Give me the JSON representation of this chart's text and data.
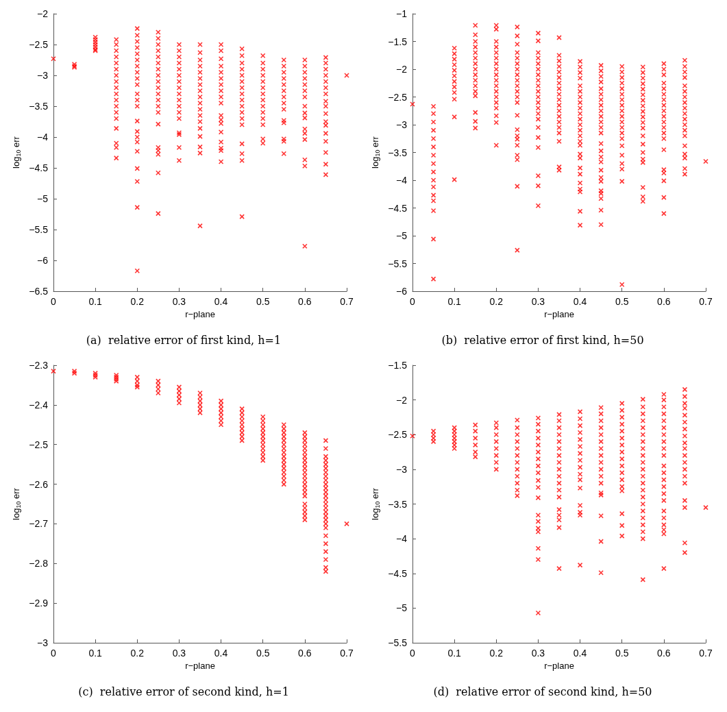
{
  "chart_data": [
    {
      "type": "scatter",
      "title": "(a)  relative error of first kind, h=1",
      "xlabel": "r−plane",
      "ylabel": "log$_{10}$ err",
      "xlim": [
        0,
        0.7
      ],
      "xticks": [
        0,
        0.1,
        0.2,
        0.3,
        0.4,
        0.5,
        0.6,
        0.7
      ],
      "ylim": [
        -6.5,
        -2
      ],
      "yticks": [
        -6.5,
        -6,
        -5.5,
        -5,
        -4.5,
        -4,
        -3.5,
        -3,
        -2.5,
        -2
      ],
      "grid": false,
      "marker": "cross",
      "series": [
        {
          "color": "#ff0000",
          "x": [
            0
          ],
          "values": [
            -2.73
          ]
        },
        {
          "color": "#ff0000",
          "x": [
            0.05,
            0.05,
            0.05
          ],
          "values": [
            -2.82,
            -2.85,
            -2.87
          ]
        },
        {
          "color": "#ff0000",
          "x": [
            0.1,
            0.1,
            0.1,
            0.1,
            0.1,
            0.1,
            0.1
          ],
          "values": [
            -2.38,
            -2.42,
            -2.46,
            -2.5,
            -2.54,
            -2.58,
            -2.6
          ]
        },
        {
          "color": "#ff0000",
          "x": [
            0.15,
            0.15,
            0.15,
            0.15,
            0.15,
            0.15,
            0.15,
            0.15,
            0.15,
            0.15,
            0.15,
            0.15,
            0.15,
            0.15,
            0.15,
            0.15,
            0.15,
            0.15
          ],
          "values": [
            -2.42,
            -2.5,
            -2.6,
            -2.7,
            -2.8,
            -2.9,
            -3.0,
            -3.1,
            -3.2,
            -3.3,
            -3.4,
            -3.5,
            -3.6,
            -3.7,
            -3.86,
            -4.1,
            -4.17,
            -4.34
          ]
        },
        {
          "color": "#ff0000",
          "x": [
            0.2,
            0.2,
            0.2,
            0.2,
            0.2,
            0.2,
            0.2,
            0.2,
            0.2,
            0.2,
            0.2,
            0.2,
            0.2,
            0.2,
            0.2,
            0.2,
            0.2,
            0.2,
            0.2,
            0.2,
            0.2,
            0.2
          ],
          "values": [
            -2.24,
            -2.35,
            -2.45,
            -2.55,
            -2.65,
            -2.75,
            -2.85,
            -2.95,
            -3.05,
            -3.15,
            -3.3,
            -3.4,
            -3.5,
            -3.74,
            -3.91,
            -4.0,
            -4.08,
            -4.23,
            -4.51,
            -4.72,
            -5.14,
            -6.17
          ]
        },
        {
          "color": "#ff0000",
          "x": [
            0.25,
            0.25,
            0.25,
            0.25,
            0.25,
            0.25,
            0.25,
            0.25,
            0.25,
            0.25,
            0.25,
            0.25,
            0.25,
            0.25,
            0.25,
            0.25,
            0.25,
            0.25,
            0.25,
            0.25
          ],
          "values": [
            -2.3,
            -2.4,
            -2.5,
            -2.6,
            -2.7,
            -2.8,
            -2.9,
            -3.0,
            -3.1,
            -3.2,
            -3.3,
            -3.4,
            -3.5,
            -3.6,
            -3.79,
            -4.17,
            -4.22,
            -4.28,
            -4.58,
            -5.24
          ]
        },
        {
          "color": "#ff0000",
          "x": [
            0.3,
            0.3,
            0.3,
            0.3,
            0.3,
            0.3,
            0.3,
            0.3,
            0.3,
            0.3,
            0.3,
            0.3,
            0.3,
            0.3,
            0.3,
            0.3,
            0.3
          ],
          "values": [
            -2.5,
            -2.6,
            -2.7,
            -2.8,
            -2.9,
            -3.0,
            -3.1,
            -3.2,
            -3.3,
            -3.4,
            -3.5,
            -3.6,
            -3.7,
            -3.93,
            -3.96,
            -4.17,
            -4.38
          ]
        },
        {
          "color": "#ff0000",
          "x": [
            0.35,
            0.35,
            0.35,
            0.35,
            0.35,
            0.35,
            0.35,
            0.35,
            0.35,
            0.35,
            0.35,
            0.35,
            0.35,
            0.35,
            0.35,
            0.35,
            0.35,
            0.35
          ],
          "values": [
            -2.5,
            -2.63,
            -2.75,
            -2.85,
            -2.95,
            -3.05,
            -3.15,
            -3.25,
            -3.35,
            -3.45,
            -3.55,
            -3.65,
            -3.75,
            -3.86,
            -3.99,
            -4.16,
            -4.26,
            -5.44
          ]
        },
        {
          "color": "#ff0000",
          "x": [
            0.4,
            0.4,
            0.4,
            0.4,
            0.4,
            0.4,
            0.4,
            0.4,
            0.4,
            0.4,
            0.4,
            0.4,
            0.4,
            0.4,
            0.4,
            0.4,
            0.4,
            0.4
          ],
          "values": [
            -2.5,
            -2.6,
            -2.73,
            -2.85,
            -2.95,
            -3.05,
            -3.15,
            -3.25,
            -3.35,
            -3.45,
            -3.65,
            -3.72,
            -3.78,
            -3.92,
            -4.08,
            -4.18,
            -4.22,
            -4.4
          ]
        },
        {
          "color": "#ff0000",
          "x": [
            0.45,
            0.45,
            0.45,
            0.45,
            0.45,
            0.45,
            0.45,
            0.45,
            0.45,
            0.45,
            0.45,
            0.45,
            0.45,
            0.45,
            0.45,
            0.45,
            0.45
          ],
          "values": [
            -2.57,
            -2.68,
            -2.8,
            -2.9,
            -3.0,
            -3.1,
            -3.2,
            -3.3,
            -3.4,
            -3.5,
            -3.6,
            -3.7,
            -3.8,
            -4.11,
            -4.27,
            -4.38,
            -5.29
          ]
        },
        {
          "color": "#ff0000",
          "x": [
            0.5,
            0.5,
            0.5,
            0.5,
            0.5,
            0.5,
            0.5,
            0.5,
            0.5,
            0.5,
            0.5,
            0.5,
            0.5,
            0.5
          ],
          "values": [
            -2.68,
            -2.8,
            -2.9,
            -3.0,
            -3.1,
            -3.2,
            -3.3,
            -3.4,
            -3.5,
            -3.6,
            -3.7,
            -3.8,
            -4.03,
            -4.1
          ]
        },
        {
          "color": "#ff0000",
          "x": [
            0.55,
            0.55,
            0.55,
            0.55,
            0.55,
            0.55,
            0.55,
            0.55,
            0.55,
            0.55,
            0.55,
            0.55,
            0.55,
            0.55
          ],
          "values": [
            -2.75,
            -2.85,
            -2.95,
            -3.05,
            -3.15,
            -3.25,
            -3.35,
            -3.45,
            -3.55,
            -3.73,
            -3.77,
            -4.03,
            -4.07,
            -4.27
          ]
        },
        {
          "color": "#ff0000",
          "x": [
            0.6,
            0.6,
            0.6,
            0.6,
            0.6,
            0.6,
            0.6,
            0.6,
            0.6,
            0.6,
            0.6,
            0.6,
            0.6,
            0.6,
            0.6,
            0.6
          ],
          "values": [
            -2.75,
            -2.85,
            -2.95,
            -3.05,
            -3.15,
            -3.25,
            -3.35,
            -3.5,
            -3.61,
            -3.69,
            -3.87,
            -3.94,
            -4.04,
            -4.37,
            -4.47,
            -5.77
          ]
        },
        {
          "color": "#ff0000",
          "x": [
            0.65,
            0.65,
            0.65,
            0.65,
            0.65,
            0.65,
            0.65,
            0.65,
            0.65,
            0.65,
            0.65,
            0.65,
            0.65,
            0.65,
            0.65,
            0.65,
            0.65
          ],
          "values": [
            -2.71,
            -2.8,
            -2.9,
            -3.0,
            -3.1,
            -3.2,
            -3.3,
            -3.42,
            -3.5,
            -3.62,
            -3.75,
            -3.81,
            -3.94,
            -4.07,
            -4.25,
            -4.44,
            -4.61
          ]
        },
        {
          "color": "#ff0000",
          "x": [
            0.7
          ],
          "values": [
            -3.0
          ]
        }
      ]
    },
    {
      "type": "scatter",
      "title": "(b)  relative error of first kind, h=50",
      "xlabel": "r−plane",
      "ylabel": "log$_{10}$ err",
      "xlim": [
        0,
        0.7
      ],
      "xticks": [
        0,
        0.1,
        0.2,
        0.3,
        0.4,
        0.5,
        0.6,
        0.7
      ],
      "ylim": [
        -6,
        -1
      ],
      "yticks": [
        -6,
        -5.5,
        -5,
        -4.5,
        -4,
        -3.5,
        -3,
        -2.5,
        -2,
        -1.5,
        -1
      ],
      "grid": false,
      "marker": "cross",
      "series": [
        {
          "color": "#ff0000",
          "x": [
            0
          ],
          "values": [
            -2.63
          ]
        },
        {
          "color": "#ff0000",
          "x": [
            0.05,
            0.05,
            0.05,
            0.05,
            0.05,
            0.05,
            0.05,
            0.05,
            0.05,
            0.05,
            0.05,
            0.05,
            0.05,
            0.05,
            0.05,
            0.05
          ],
          "values": [
            -2.67,
            -2.8,
            -2.95,
            -3.1,
            -3.25,
            -3.4,
            -3.55,
            -3.7,
            -3.85,
            -4.0,
            -4.12,
            -4.27,
            -4.37,
            -4.55,
            -5.06,
            -5.78
          ]
        },
        {
          "color": "#ff0000",
          "x": [
            0.1,
            0.1,
            0.1,
            0.1,
            0.1,
            0.1,
            0.1,
            0.1,
            0.1,
            0.1,
            0.1,
            0.1
          ],
          "values": [
            -1.62,
            -1.72,
            -1.82,
            -1.92,
            -2.02,
            -2.12,
            -2.22,
            -2.32,
            -2.42,
            -2.54,
            -2.86,
            -3.99
          ]
        },
        {
          "color": "#ff0000",
          "x": [
            0.15,
            0.15,
            0.15,
            0.15,
            0.15,
            0.15,
            0.15,
            0.15,
            0.15,
            0.15,
            0.15,
            0.15,
            0.15,
            0.15,
            0.15,
            0.15
          ],
          "values": [
            -1.21,
            -1.38,
            -1.5,
            -1.6,
            -1.7,
            -1.8,
            -1.9,
            -2.0,
            -2.1,
            -2.2,
            -2.3,
            -2.4,
            -2.48,
            -2.78,
            -2.94,
            -3.06
          ]
        },
        {
          "color": "#ff0000",
          "x": [
            0.2,
            0.2,
            0.2,
            0.2,
            0.2,
            0.2,
            0.2,
            0.2,
            0.2,
            0.2,
            0.2,
            0.2,
            0.2,
            0.2,
            0.2,
            0.2,
            0.2,
            0.2
          ],
          "values": [
            -1.21,
            -1.28,
            -1.5,
            -1.6,
            -1.7,
            -1.8,
            -1.9,
            -2.0,
            -2.1,
            -2.2,
            -2.3,
            -2.4,
            -2.5,
            -2.6,
            -2.7,
            -2.84,
            -2.96,
            -3.37
          ]
        },
        {
          "color": "#ff0000",
          "x": [
            0.25,
            0.25,
            0.25,
            0.25,
            0.25,
            0.25,
            0.25,
            0.25,
            0.25,
            0.25,
            0.25,
            0.25,
            0.25,
            0.25,
            0.25,
            0.25,
            0.25,
            0.25,
            0.25,
            0.25,
            0.25,
            0.25
          ],
          "values": [
            -1.24,
            -1.4,
            -1.55,
            -1.7,
            -1.8,
            -1.9,
            -2.0,
            -2.1,
            -2.2,
            -2.3,
            -2.4,
            -2.5,
            -2.6,
            -2.83,
            -3.09,
            -3.2,
            -3.26,
            -3.37,
            -3.55,
            -3.63,
            -4.11,
            -5.26
          ]
        },
        {
          "color": "#ff0000",
          "x": [
            0.3,
            0.3,
            0.3,
            0.3,
            0.3,
            0.3,
            0.3,
            0.3,
            0.3,
            0.3,
            0.3,
            0.3,
            0.3,
            0.3,
            0.3,
            0.3,
            0.3,
            0.3,
            0.3,
            0.3,
            0.3
          ],
          "values": [
            -1.35,
            -1.49,
            -1.7,
            -1.8,
            -1.9,
            -2.0,
            -2.1,
            -2.2,
            -2.3,
            -2.4,
            -2.5,
            -2.6,
            -2.7,
            -2.8,
            -2.9,
            -3.05,
            -3.23,
            -3.41,
            -3.92,
            -4.1,
            -4.46
          ]
        },
        {
          "color": "#ff0000",
          "x": [
            0.35,
            0.35,
            0.35,
            0.35,
            0.35,
            0.35,
            0.35,
            0.35,
            0.35,
            0.35,
            0.35,
            0.35,
            0.35,
            0.35,
            0.35,
            0.35,
            0.35,
            0.35,
            0.35
          ],
          "values": [
            -1.43,
            -1.75,
            -1.85,
            -1.95,
            -2.05,
            -2.15,
            -2.25,
            -2.35,
            -2.45,
            -2.55,
            -2.65,
            -2.75,
            -2.85,
            -2.95,
            -3.05,
            -3.15,
            -3.3,
            -3.76,
            -3.82
          ]
        },
        {
          "color": "#ff0000",
          "x": [
            0.4,
            0.4,
            0.4,
            0.4,
            0.4,
            0.4,
            0.4,
            0.4,
            0.4,
            0.4,
            0.4,
            0.4,
            0.4,
            0.4,
            0.4,
            0.4,
            0.4,
            0.4,
            0.4,
            0.4,
            0.4,
            0.4,
            0.4,
            0.4,
            0.4
          ],
          "values": [
            -1.86,
            -1.96,
            -2.06,
            -2.16,
            -2.3,
            -2.4,
            -2.5,
            -2.6,
            -2.7,
            -2.8,
            -2.9,
            -3.0,
            -3.1,
            -3.2,
            -3.3,
            -3.37,
            -3.53,
            -3.6,
            -3.78,
            -3.89,
            -4.05,
            -4.16,
            -4.21,
            -4.56,
            -4.81
          ]
        },
        {
          "color": "#ff0000",
          "x": [
            0.45,
            0.45,
            0.45,
            0.45,
            0.45,
            0.45,
            0.45,
            0.45,
            0.45,
            0.45,
            0.45,
            0.45,
            0.45,
            0.45,
            0.45,
            0.45,
            0.45,
            0.45,
            0.45,
            0.45,
            0.45,
            0.45,
            0.45,
            0.45,
            0.45
          ],
          "values": [
            -1.93,
            -2.03,
            -2.13,
            -2.23,
            -2.35,
            -2.45,
            -2.55,
            -2.65,
            -2.75,
            -2.85,
            -2.95,
            -3.05,
            -3.15,
            -3.34,
            -3.47,
            -3.58,
            -3.67,
            -3.82,
            -3.95,
            -4.02,
            -4.19,
            -4.24,
            -4.33,
            -4.54,
            -4.8
          ]
        },
        {
          "color": "#ff0000",
          "x": [
            0.5,
            0.5,
            0.5,
            0.5,
            0.5,
            0.5,
            0.5,
            0.5,
            0.5,
            0.5,
            0.5,
            0.5,
            0.5,
            0.5,
            0.5,
            0.5,
            0.5,
            0.5,
            0.5,
            0.5
          ],
          "values": [
            -1.95,
            -2.05,
            -2.15,
            -2.25,
            -2.35,
            -2.45,
            -2.55,
            -2.65,
            -2.75,
            -2.85,
            -2.95,
            -3.05,
            -3.15,
            -3.25,
            -3.38,
            -3.55,
            -3.7,
            -3.8,
            -4.02,
            -5.88
          ]
        },
        {
          "color": "#ff0000",
          "x": [
            0.55,
            0.55,
            0.55,
            0.55,
            0.55,
            0.55,
            0.55,
            0.55,
            0.55,
            0.55,
            0.55,
            0.55,
            0.55,
            0.55,
            0.55,
            0.55,
            0.55,
            0.55,
            0.55,
            0.55
          ],
          "values": [
            -1.96,
            -2.06,
            -2.16,
            -2.26,
            -2.36,
            -2.46,
            -2.56,
            -2.66,
            -2.76,
            -2.86,
            -2.96,
            -3.06,
            -3.2,
            -3.35,
            -3.5,
            -3.62,
            -3.68,
            -4.13,
            -4.3,
            -4.38
          ]
        },
        {
          "color": "#ff0000",
          "x": [
            0.6,
            0.6,
            0.6,
            0.6,
            0.6,
            0.6,
            0.6,
            0.6,
            0.6,
            0.6,
            0.6,
            0.6,
            0.6,
            0.6,
            0.6,
            0.6,
            0.6,
            0.6,
            0.6,
            0.6
          ],
          "values": [
            -1.9,
            -2.0,
            -2.1,
            -2.25,
            -2.35,
            -2.45,
            -2.55,
            -2.65,
            -2.75,
            -2.85,
            -2.95,
            -3.05,
            -3.15,
            -3.25,
            -3.45,
            -3.81,
            -3.87,
            -4.01,
            -4.31,
            -4.6
          ]
        },
        {
          "color": "#ff0000",
          "x": [
            0.65,
            0.65,
            0.65,
            0.65,
            0.65,
            0.65,
            0.65,
            0.65,
            0.65,
            0.65,
            0.65,
            0.65,
            0.65,
            0.65,
            0.65,
            0.65,
            0.65,
            0.65,
            0.65
          ],
          "values": [
            -1.84,
            -1.95,
            -2.05,
            -2.15,
            -2.3,
            -2.4,
            -2.5,
            -2.6,
            -2.7,
            -2.8,
            -2.9,
            -3.0,
            -3.1,
            -3.2,
            -3.38,
            -3.53,
            -3.6,
            -3.79,
            -3.89
          ]
        },
        {
          "color": "#ff0000",
          "x": [
            0.7
          ],
          "values": [
            -3.66
          ]
        }
      ]
    },
    {
      "type": "scatter",
      "title": "(c)  relative error of second kind, h=1",
      "xlabel": "r−plane",
      "ylabel": "log$_{10}$ err",
      "xlim": [
        0,
        0.7
      ],
      "xticks": [
        0,
        0.1,
        0.2,
        0.3,
        0.4,
        0.5,
        0.6,
        0.7
      ],
      "ylim": [
        -3,
        -2.3
      ],
      "yticks": [
        -3,
        -2.9,
        -2.8,
        -2.7,
        -2.6,
        -2.5,
        -2.4,
        -2.3
      ],
      "grid": false,
      "marker": "cross",
      "series": [
        {
          "color": "#ff0000",
          "x": [
            0
          ],
          "values": [
            -2.315
          ]
        },
        {
          "color": "#ff0000",
          "x": [
            0.05,
            0.05
          ],
          "values": [
            -2.315,
            -2.32
          ]
        },
        {
          "color": "#ff0000",
          "x": [
            0.1,
            0.1,
            0.1
          ],
          "values": [
            -2.32,
            -2.325,
            -2.33
          ]
        },
        {
          "color": "#ff0000",
          "x": [
            0.15,
            0.15,
            0.15,
            0.15
          ],
          "values": [
            -2.325,
            -2.33,
            -2.335,
            -2.34
          ]
        },
        {
          "color": "#ff0000",
          "x": [
            0.2,
            0.2,
            0.2,
            0.2
          ],
          "values": [
            -2.33,
            -2.34,
            -2.35,
            -2.355
          ]
        },
        {
          "color": "#ff0000",
          "x": [
            0.25,
            0.25,
            0.25,
            0.25
          ],
          "values": [
            -2.34,
            -2.35,
            -2.36,
            -2.37
          ]
        },
        {
          "color": "#ff0000",
          "x": [
            0.3,
            0.3,
            0.3,
            0.3,
            0.3
          ],
          "values": [
            -2.355,
            -2.365,
            -2.375,
            -2.385,
            -2.395
          ]
        },
        {
          "color": "#ff0000",
          "x": [
            0.35,
            0.35,
            0.35,
            0.35,
            0.35,
            0.35
          ],
          "values": [
            -2.37,
            -2.38,
            -2.39,
            -2.4,
            -2.41,
            -2.42
          ]
        },
        {
          "color": "#ff0000",
          "x": [
            0.4,
            0.4,
            0.4,
            0.4,
            0.4,
            0.4,
            0.4
          ],
          "values": [
            -2.39,
            -2.4,
            -2.41,
            -2.42,
            -2.43,
            -2.44,
            -2.45
          ]
        },
        {
          "color": "#ff0000",
          "x": [
            0.45,
            0.45,
            0.45,
            0.45,
            0.45,
            0.45,
            0.45,
            0.45,
            0.45
          ],
          "values": [
            -2.41,
            -2.42,
            -2.43,
            -2.44,
            -2.45,
            -2.46,
            -2.47,
            -2.48,
            -2.49
          ]
        },
        {
          "color": "#ff0000",
          "x": [
            0.5,
            0.5,
            0.5,
            0.5,
            0.5,
            0.5,
            0.5,
            0.5,
            0.5,
            0.5,
            0.5,
            0.5
          ],
          "values": [
            -2.43,
            -2.44,
            -2.45,
            -2.46,
            -2.47,
            -2.48,
            -2.49,
            -2.5,
            -2.51,
            -2.52,
            -2.53,
            -2.54
          ]
        },
        {
          "color": "#ff0000",
          "x": [
            0.55,
            0.55,
            0.55,
            0.55,
            0.55,
            0.55,
            0.55,
            0.55,
            0.55,
            0.55,
            0.55,
            0.55,
            0.55,
            0.55,
            0.55,
            0.55
          ],
          "values": [
            -2.45,
            -2.46,
            -2.47,
            -2.48,
            -2.49,
            -2.5,
            -2.51,
            -2.52,
            -2.53,
            -2.54,
            -2.55,
            -2.56,
            -2.57,
            -2.58,
            -2.59,
            -2.6
          ]
        },
        {
          "color": "#ff0000",
          "x": [
            0.6,
            0.6,
            0.6,
            0.6,
            0.6,
            0.6,
            0.6,
            0.6,
            0.6,
            0.6,
            0.6,
            0.6,
            0.6,
            0.6,
            0.6,
            0.6,
            0.6,
            0.6,
            0.6,
            0.6,
            0.6,
            0.6
          ],
          "values": [
            -2.47,
            -2.48,
            -2.49,
            -2.5,
            -2.51,
            -2.52,
            -2.53,
            -2.54,
            -2.55,
            -2.56,
            -2.57,
            -2.58,
            -2.59,
            -2.6,
            -2.61,
            -2.62,
            -2.63,
            -2.65,
            -2.66,
            -2.67,
            -2.68,
            -2.69
          ]
        },
        {
          "color": "#ff0000",
          "x": [
            0.65,
            0.65,
            0.65,
            0.65,
            0.65,
            0.65,
            0.65,
            0.65,
            0.65,
            0.65,
            0.65,
            0.65,
            0.65,
            0.65,
            0.65,
            0.65,
            0.65,
            0.65,
            0.65,
            0.65,
            0.65,
            0.65,
            0.65,
            0.65,
            0.65,
            0.65,
            0.65
          ],
          "values": [
            -2.49,
            -2.51,
            -2.53,
            -2.54,
            -2.55,
            -2.56,
            -2.57,
            -2.58,
            -2.59,
            -2.6,
            -2.61,
            -2.62,
            -2.63,
            -2.64,
            -2.65,
            -2.66,
            -2.67,
            -2.68,
            -2.69,
            -2.7,
            -2.71,
            -2.73,
            -2.75,
            -2.77,
            -2.79,
            -2.81,
            -2.82
          ]
        },
        {
          "color": "#ff0000",
          "x": [
            0.7
          ],
          "values": [
            -2.7
          ]
        }
      ]
    },
    {
      "type": "scatter",
      "title": "(d)  relative error of second kind, h=50",
      "xlabel": "r−plane",
      "ylabel": "log$_{10}$ err",
      "xlim": [
        0,
        0.7
      ],
      "xticks": [
        0,
        0.1,
        0.2,
        0.3,
        0.4,
        0.5,
        0.6,
        0.7
      ],
      "ylim": [
        -5.5,
        -1.5
      ],
      "yticks": [
        -5.5,
        -5,
        -4.5,
        -4,
        -3.5,
        -3,
        -2.5,
        -2,
        -1.5
      ],
      "grid": false,
      "marker": "cross",
      "series": [
        {
          "color": "#ff0000",
          "x": [
            0
          ],
          "values": [
            -2.52
          ]
        },
        {
          "color": "#ff0000",
          "x": [
            0.05,
            0.05,
            0.05,
            0.05
          ],
          "values": [
            -2.45,
            -2.5,
            -2.55,
            -2.6
          ]
        },
        {
          "color": "#ff0000",
          "x": [
            0.1,
            0.1,
            0.1,
            0.1,
            0.1,
            0.1,
            0.1
          ],
          "values": [
            -2.4,
            -2.45,
            -2.5,
            -2.55,
            -2.6,
            -2.65,
            -2.7
          ]
        },
        {
          "color": "#ff0000",
          "x": [
            0.15,
            0.15,
            0.15,
            0.15,
            0.15,
            0.15
          ],
          "values": [
            -2.36,
            -2.45,
            -2.55,
            -2.65,
            -2.75,
            -2.82
          ]
        },
        {
          "color": "#ff0000",
          "x": [
            0.2,
            0.2,
            0.2,
            0.2,
            0.2,
            0.2,
            0.2,
            0.2
          ],
          "values": [
            -2.33,
            -2.4,
            -2.5,
            -2.6,
            -2.7,
            -2.8,
            -2.9,
            -3.0
          ]
        },
        {
          "color": "#ff0000",
          "x": [
            0.25,
            0.25,
            0.25,
            0.25,
            0.25,
            0.25,
            0.25,
            0.25,
            0.25,
            0.25,
            0.25,
            0.25
          ],
          "values": [
            -2.29,
            -2.4,
            -2.5,
            -2.6,
            -2.7,
            -2.8,
            -2.9,
            -3.0,
            -3.1,
            -3.2,
            -3.3,
            -3.38
          ]
        },
        {
          "color": "#ff0000",
          "x": [
            0.3,
            0.3,
            0.3,
            0.3,
            0.3,
            0.3,
            0.3,
            0.3,
            0.3,
            0.3,
            0.3,
            0.3,
            0.3,
            0.3,
            0.3,
            0.3,
            0.3,
            0.3,
            0.3
          ],
          "values": [
            -2.26,
            -2.35,
            -2.45,
            -2.55,
            -2.65,
            -2.75,
            -2.85,
            -2.95,
            -3.05,
            -3.16,
            -3.26,
            -3.41,
            -3.66,
            -3.75,
            -3.85,
            -3.9,
            -4.14,
            -4.3,
            -5.07
          ]
        },
        {
          "color": "#ff0000",
          "x": [
            0.35,
            0.35,
            0.35,
            0.35,
            0.35,
            0.35,
            0.35,
            0.35,
            0.35,
            0.35,
            0.35,
            0.35,
            0.35,
            0.35,
            0.35,
            0.35,
            0.35,
            0.35
          ],
          "values": [
            -2.21,
            -2.3,
            -2.4,
            -2.5,
            -2.6,
            -2.7,
            -2.8,
            -2.9,
            -3.0,
            -3.1,
            -3.2,
            -3.3,
            -3.4,
            -3.58,
            -3.66,
            -3.73,
            -3.84,
            -4.43
          ]
        },
        {
          "color": "#ff0000",
          "x": [
            0.4,
            0.4,
            0.4,
            0.4,
            0.4,
            0.4,
            0.4,
            0.4,
            0.4,
            0.4,
            0.4,
            0.4,
            0.4,
            0.4,
            0.4,
            0.4
          ],
          "values": [
            -2.17,
            -2.27,
            -2.37,
            -2.47,
            -2.57,
            -2.67,
            -2.77,
            -2.87,
            -2.97,
            -3.07,
            -3.15,
            -3.27,
            -3.52,
            -3.62,
            -3.66,
            -4.38
          ]
        },
        {
          "color": "#ff0000",
          "x": [
            0.45,
            0.45,
            0.45,
            0.45,
            0.45,
            0.45,
            0.45,
            0.45,
            0.45,
            0.45,
            0.45,
            0.45,
            0.45,
            0.45,
            0.45,
            0.45,
            0.45
          ],
          "values": [
            -2.11,
            -2.2,
            -2.3,
            -2.4,
            -2.5,
            -2.6,
            -2.7,
            -2.8,
            -2.9,
            -3.0,
            -3.1,
            -3.2,
            -3.34,
            -3.37,
            -3.67,
            -4.04,
            -4.49
          ]
        },
        {
          "color": "#ff0000",
          "x": [
            0.5,
            0.5,
            0.5,
            0.5,
            0.5,
            0.5,
            0.5,
            0.5,
            0.5,
            0.5,
            0.5,
            0.5,
            0.5,
            0.5,
            0.5,
            0.5,
            0.5
          ],
          "values": [
            -2.05,
            -2.15,
            -2.25,
            -2.35,
            -2.45,
            -2.55,
            -2.65,
            -2.75,
            -2.85,
            -2.95,
            -3.05,
            -3.15,
            -3.25,
            -3.31,
            -3.64,
            -3.81,
            -3.96
          ]
        },
        {
          "color": "#ff0000",
          "x": [
            0.55,
            0.55,
            0.55,
            0.55,
            0.55,
            0.55,
            0.55,
            0.55,
            0.55,
            0.55,
            0.55,
            0.55,
            0.55,
            0.55,
            0.55,
            0.55,
            0.55,
            0.55,
            0.55,
            0.55,
            0.55,
            0.55
          ],
          "values": [
            -1.99,
            -2.1,
            -2.2,
            -2.3,
            -2.4,
            -2.5,
            -2.6,
            -2.7,
            -2.8,
            -2.9,
            -3.0,
            -3.1,
            -3.2,
            -3.3,
            -3.4,
            -3.5,
            -3.6,
            -3.7,
            -3.8,
            -3.9,
            -4.0,
            -4.59
          ]
        },
        {
          "color": "#ff0000",
          "x": [
            0.6,
            0.6,
            0.6,
            0.6,
            0.6,
            0.6,
            0.6,
            0.6,
            0.6,
            0.6,
            0.6,
            0.6,
            0.6,
            0.6,
            0.6,
            0.6,
            0.6,
            0.6,
            0.6,
            0.6,
            0.6,
            0.6
          ],
          "values": [
            -1.92,
            -2.0,
            -2.1,
            -2.2,
            -2.3,
            -2.4,
            -2.5,
            -2.6,
            -2.7,
            -2.8,
            -2.95,
            -3.05,
            -3.15,
            -3.25,
            -3.35,
            -3.45,
            -3.6,
            -3.7,
            -3.8,
            -3.87,
            -3.93,
            -4.43
          ]
        },
        {
          "color": "#ff0000",
          "x": [
            0.65,
            0.65,
            0.65,
            0.65,
            0.65,
            0.65,
            0.65,
            0.65,
            0.65,
            0.65,
            0.65,
            0.65,
            0.65,
            0.65,
            0.65,
            0.65,
            0.65,
            0.65,
            0.65
          ],
          "values": [
            -1.85,
            -1.95,
            -2.05,
            -2.12,
            -2.22,
            -2.32,
            -2.42,
            -2.52,
            -2.62,
            -2.7,
            -2.8,
            -2.9,
            -3.0,
            -3.1,
            -3.2,
            -3.45,
            -3.55,
            -4.06,
            -4.2
          ]
        },
        {
          "color": "#ff0000",
          "x": [
            0.7
          ],
          "values": [
            -3.55
          ]
        }
      ]
    }
  ]
}
